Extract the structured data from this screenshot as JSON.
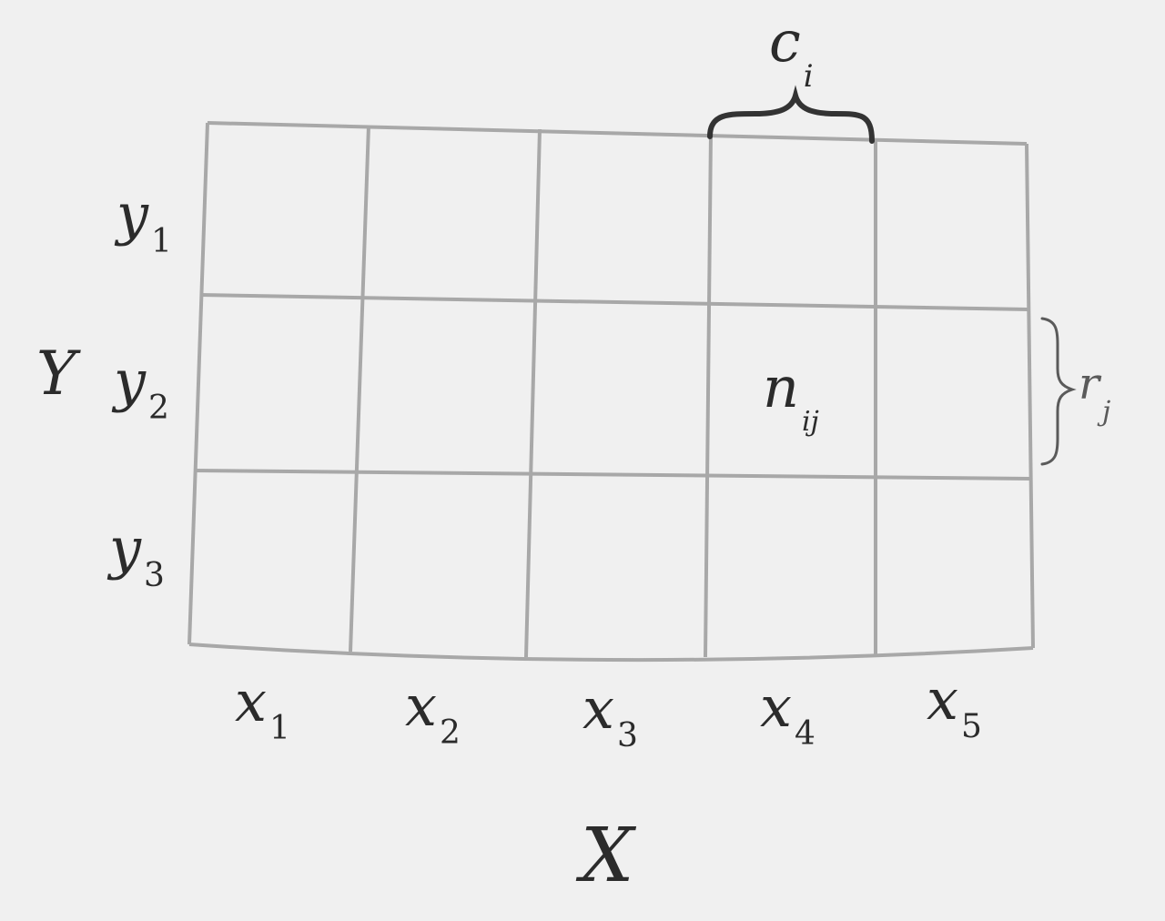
{
  "grid": {
    "rows": 3,
    "cols": 5,
    "highlight_row": 2,
    "highlight_col": 4
  },
  "x_axis": {
    "symbol": "X",
    "labels": [
      {
        "base": "x",
        "sub": "1"
      },
      {
        "base": "x",
        "sub": "2"
      },
      {
        "base": "x",
        "sub": "3"
      },
      {
        "base": "x",
        "sub": "4"
      },
      {
        "base": "x",
        "sub": "5"
      }
    ]
  },
  "y_axis": {
    "symbol": "Y",
    "labels": [
      {
        "base": "y",
        "sub": "1"
      },
      {
        "base": "y",
        "sub": "2"
      },
      {
        "base": "y",
        "sub": "3"
      }
    ]
  },
  "cell_label": {
    "base": "n",
    "sub": "ij"
  },
  "column_sum": {
    "base": "c",
    "sub": "i"
  },
  "row_sum": {
    "base": "r",
    "sub": "j"
  },
  "colors": {
    "grid_line": "#a8a8a8",
    "brace": "#333333",
    "text": "#2b2b2b",
    "background": "#f0f0f0"
  }
}
